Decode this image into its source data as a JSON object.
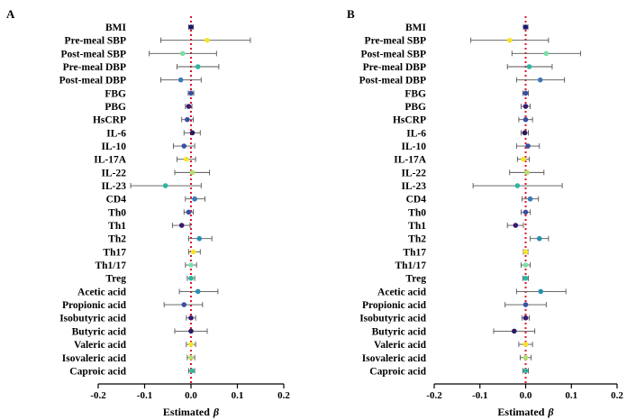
{
  "chart_data": [
    {
      "type": "forest",
      "panel": "A",
      "xlabel": "Estimated",
      "xlabel_symbol": "β",
      "xlim": [
        -0.2,
        0.2
      ],
      "xticks": [
        "-0.2",
        "-0.1",
        "0.0",
        "0.1",
        "0.2"
      ],
      "xtick_values": [
        -0.2,
        -0.1,
        0.0,
        0.1,
        0.2
      ],
      "reference_line": 0.0,
      "rows": [
        {
          "label": "BMI",
          "estimate": 0.0,
          "lower": -0.005,
          "upper": 0.005,
          "color": "#1a1a6e"
        },
        {
          "label": "Pre-meal SBP",
          "estimate": 0.035,
          "lower": -0.065,
          "upper": 0.128,
          "color": "#f5e52a"
        },
        {
          "label": "Post-meal SBP",
          "estimate": -0.018,
          "lower": -0.09,
          "upper": 0.055,
          "color": "#7be0a6"
        },
        {
          "label": "Pre-meal DBP",
          "estimate": 0.015,
          "lower": -0.03,
          "upper": 0.06,
          "color": "#2fb5a0"
        },
        {
          "label": "Post-meal DBP",
          "estimate": -0.022,
          "lower": -0.065,
          "upper": 0.022,
          "color": "#3a7ab8"
        },
        {
          "label": "FBG",
          "estimate": 0.0,
          "lower": -0.006,
          "upper": 0.006,
          "color": "#3a4fa0"
        },
        {
          "label": "PBG",
          "estimate": -0.005,
          "lower": -0.012,
          "upper": 0.002,
          "color": "#3a1a6e"
        },
        {
          "label": "HsCRP",
          "estimate": -0.008,
          "lower": -0.02,
          "upper": 0.005,
          "color": "#3a4fa0"
        },
        {
          "label": "IL-6",
          "estimate": 0.003,
          "lower": -0.015,
          "upper": 0.02,
          "color": "#2a1a5e"
        },
        {
          "label": "IL-10",
          "estimate": -0.015,
          "lower": -0.038,
          "upper": 0.008,
          "color": "#3a4fa0"
        },
        {
          "label": "IL-17A",
          "estimate": -0.01,
          "lower": -0.03,
          "upper": 0.01,
          "color": "#f5e52a"
        },
        {
          "label": "IL-22",
          "estimate": 0.003,
          "lower": -0.035,
          "upper": 0.04,
          "color": "#b5e06a"
        },
        {
          "label": "IL-23",
          "estimate": -0.055,
          "lower": -0.13,
          "upper": 0.022,
          "color": "#2fb5a0"
        },
        {
          "label": "CD4",
          "estimate": 0.008,
          "lower": -0.012,
          "upper": 0.03,
          "color": "#3a7ab8"
        },
        {
          "label": "Th0",
          "estimate": -0.005,
          "lower": -0.015,
          "upper": 0.005,
          "color": "#3a4fa0"
        },
        {
          "label": "Th1",
          "estimate": -0.02,
          "lower": -0.04,
          "upper": -0.002,
          "color": "#3a1a6e"
        },
        {
          "label": "Th2",
          "estimate": 0.018,
          "lower": -0.005,
          "upper": 0.045,
          "color": "#2a8fb0"
        },
        {
          "label": "Th17",
          "estimate": 0.005,
          "lower": -0.005,
          "upper": 0.02,
          "color": "#f5e52a"
        },
        {
          "label": "Th1/17",
          "estimate": 0.0,
          "lower": -0.012,
          "upper": 0.012,
          "color": "#7be0a6"
        },
        {
          "label": "Treg",
          "estimate": 0.0,
          "lower": -0.008,
          "upper": 0.008,
          "color": "#2fb5a0"
        },
        {
          "label": "Acetic acid",
          "estimate": 0.015,
          "lower": -0.025,
          "upper": 0.058,
          "color": "#2a8fb0"
        },
        {
          "label": "Propionic acid",
          "estimate": -0.015,
          "lower": -0.058,
          "upper": 0.025,
          "color": "#3a4fa0"
        },
        {
          "label": "Isobutyric acid",
          "estimate": 0.0,
          "lower": -0.01,
          "upper": 0.01,
          "color": "#3a1a6e"
        },
        {
          "label": "Butyric acid",
          "estimate": 0.0,
          "lower": -0.035,
          "upper": 0.035,
          "color": "#2a1a5e"
        },
        {
          "label": "Valeric acid",
          "estimate": 0.0,
          "lower": -0.01,
          "upper": 0.01,
          "color": "#f5e52a"
        },
        {
          "label": "Isovaleric acid",
          "estimate": 0.0,
          "lower": -0.008,
          "upper": 0.008,
          "color": "#b5e06a"
        },
        {
          "label": "Caproic acid",
          "estimate": 0.002,
          "lower": -0.005,
          "upper": 0.008,
          "color": "#2fb5a0"
        }
      ]
    },
    {
      "type": "forest",
      "panel": "B",
      "xlabel": "Estimated",
      "xlabel_symbol": "β",
      "xlim": [
        -0.2,
        0.2
      ],
      "xticks": [
        "-0.2",
        "-0.1",
        "0.0",
        "0.1",
        "0.2"
      ],
      "xtick_values": [
        -0.2,
        -0.1,
        0.0,
        0.1,
        0.2
      ],
      "reference_line": 0.0,
      "rows": [
        {
          "label": "BMI",
          "estimate": 0.0,
          "lower": -0.005,
          "upper": 0.005,
          "color": "#1a1a6e"
        },
        {
          "label": "Pre-meal SBP",
          "estimate": -0.035,
          "lower": -0.12,
          "upper": 0.05,
          "color": "#f5e52a"
        },
        {
          "label": "Post-meal SBP",
          "estimate": 0.045,
          "lower": -0.03,
          "upper": 0.12,
          "color": "#7be0a6"
        },
        {
          "label": "Pre-meal DBP",
          "estimate": 0.008,
          "lower": -0.04,
          "upper": 0.058,
          "color": "#2fb5a0"
        },
        {
          "label": "Post-meal DBP",
          "estimate": 0.032,
          "lower": -0.02,
          "upper": 0.085,
          "color": "#3a7ab8"
        },
        {
          "label": "FBG",
          "estimate": 0.0,
          "lower": -0.006,
          "upper": 0.006,
          "color": "#3a4fa0"
        },
        {
          "label": "PBG",
          "estimate": 0.0,
          "lower": -0.01,
          "upper": 0.01,
          "color": "#3a1a6e"
        },
        {
          "label": "HsCRP",
          "estimate": 0.0,
          "lower": -0.015,
          "upper": 0.015,
          "color": "#3a4fa0"
        },
        {
          "label": "IL-6",
          "estimate": -0.002,
          "lower": -0.01,
          "upper": 0.006,
          "color": "#2a1a5e"
        },
        {
          "label": "IL-10",
          "estimate": 0.005,
          "lower": -0.02,
          "upper": 0.03,
          "color": "#3a4fa0"
        },
        {
          "label": "IL-17A",
          "estimate": -0.005,
          "lower": -0.018,
          "upper": 0.008,
          "color": "#f5e52a"
        },
        {
          "label": "IL-22",
          "estimate": 0.003,
          "lower": -0.035,
          "upper": 0.04,
          "color": "#b5e06a"
        },
        {
          "label": "IL-23",
          "estimate": -0.018,
          "lower": -0.115,
          "upper": 0.08,
          "color": "#2fb5a0"
        },
        {
          "label": "CD4",
          "estimate": 0.01,
          "lower": -0.008,
          "upper": 0.028,
          "color": "#3a7ab8"
        },
        {
          "label": "Th0",
          "estimate": 0.0,
          "lower": -0.01,
          "upper": 0.01,
          "color": "#3a4fa0"
        },
        {
          "label": "Th1",
          "estimate": -0.022,
          "lower": -0.04,
          "upper": -0.005,
          "color": "#3a1a6e"
        },
        {
          "label": "Th2",
          "estimate": 0.03,
          "lower": 0.01,
          "upper": 0.05,
          "color": "#2a8fb0"
        },
        {
          "label": "Th17",
          "estimate": 0.0,
          "lower": -0.005,
          "upper": 0.005,
          "color": "#f5e52a"
        },
        {
          "label": "Th1/17",
          "estimate": 0.0,
          "lower": -0.01,
          "upper": 0.01,
          "color": "#7be0a6"
        },
        {
          "label": "Treg",
          "estimate": 0.0,
          "lower": -0.006,
          "upper": 0.006,
          "color": "#2fb5a0"
        },
        {
          "label": "Acetic acid",
          "estimate": 0.033,
          "lower": -0.02,
          "upper": 0.088,
          "color": "#2a8fb0"
        },
        {
          "label": "Propionic acid",
          "estimate": 0.0,
          "lower": -0.045,
          "upper": 0.045,
          "color": "#3a4fa0"
        },
        {
          "label": "Isobutyric acid",
          "estimate": 0.0,
          "lower": -0.008,
          "upper": 0.008,
          "color": "#3a1a6e"
        },
        {
          "label": "Butyric acid",
          "estimate": -0.025,
          "lower": -0.07,
          "upper": 0.02,
          "color": "#2a1a5e"
        },
        {
          "label": "Valeric acid",
          "estimate": 0.0,
          "lower": -0.015,
          "upper": 0.015,
          "color": "#f5e52a"
        },
        {
          "label": "Isovaleric acid",
          "estimate": 0.0,
          "lower": -0.012,
          "upper": 0.012,
          "color": "#b5e06a"
        },
        {
          "label": "Caproic acid",
          "estimate": 0.0,
          "lower": -0.006,
          "upper": 0.006,
          "color": "#2fb5a0"
        }
      ]
    }
  ],
  "colors": {
    "reference_line": "#e0102a",
    "axis": "#000000",
    "error_bar": "#555555"
  }
}
